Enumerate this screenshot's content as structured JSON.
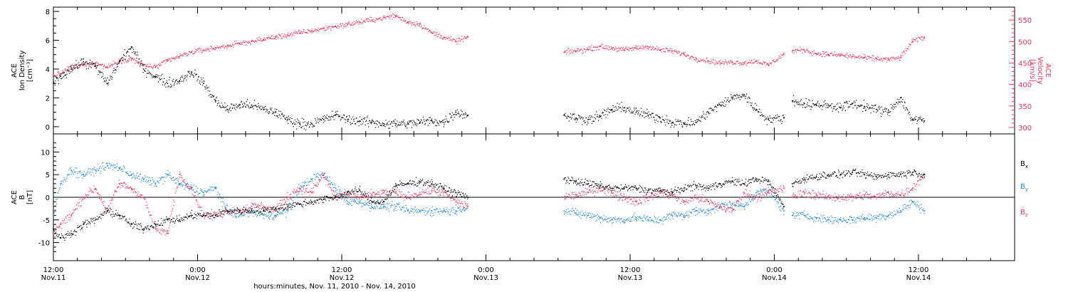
{
  "colors": {
    "black": "#000000",
    "blue": "#1f87e0",
    "pink": "#e8365e"
  },
  "xaxis": {
    "title": "hours:minutes, Nov. 11, 2010 - Nov. 14, 2010",
    "range_hours": [
      0,
      80
    ],
    "major_ticks": [
      {
        "hour": 0,
        "time": "12:00",
        "date": "Nov.11"
      },
      {
        "hour": 12,
        "time": "0:00",
        "date": "Nov.12"
      },
      {
        "hour": 24,
        "time": "12:00",
        "date": "Nov.12"
      },
      {
        "hour": 36,
        "time": "0:00",
        "date": "Nov.13"
      },
      {
        "hour": 48,
        "time": "12:00",
        "date": "Nov.13"
      },
      {
        "hour": 60,
        "time": "0:00",
        "date": "Nov.14"
      },
      {
        "hour": 72,
        "time": "12:00",
        "date": "Nov.14"
      }
    ]
  },
  "chart_data": [
    {
      "type": "scatter",
      "panel": "top",
      "ylabel_left": [
        "ACE",
        "Ion Density",
        "[cm⁻³]"
      ],
      "ylabel_right": [
        "ACE",
        "Velocity",
        "[km/s]"
      ],
      "ylim_left": [
        -0.5,
        8.3
      ],
      "yticks_left": [
        0,
        2,
        4,
        6,
        8
      ],
      "ylim_right": [
        285,
        580
      ],
      "yticks_right": [
        300,
        350,
        400,
        450,
        500,
        550
      ],
      "data_gaps_hours": [
        [
          34.5,
          42.5
        ],
        [
          60.8,
          61.5
        ]
      ],
      "series": [
        {
          "key": "density",
          "color": "#000000",
          "axis": "left",
          "x": [
            0,
            0.6,
            1.5,
            2.5,
            3.5,
            4.5,
            5.5,
            6.5,
            7.5,
            8.5,
            9.5,
            10.5,
            11.5,
            12.5,
            13.5,
            14.5,
            15.5,
            16.5,
            17.5,
            18.5,
            19.5,
            20.5,
            21.5,
            22.5,
            23.5,
            24.5,
            25.5,
            26.5,
            27.5,
            28.5,
            29.5,
            30.5,
            31.5,
            32.5,
            33.5,
            34.5,
            42.5,
            43.5,
            44.5,
            45.5,
            46.5,
            47.5,
            48.5,
            49.5,
            50.5,
            51.5,
            52.5,
            53.5,
            54.5,
            55.5,
            56.5,
            57.5,
            58.5,
            59.5,
            60.8,
            61.5,
            62.5,
            63.5,
            64.5,
            65.5,
            66.5,
            67.5,
            68.5,
            69.5,
            70.5,
            71.5,
            72.5
          ],
          "y": [
            3.0,
            3.5,
            4.0,
            4.5,
            4.2,
            3.0,
            4.5,
            5.5,
            4.0,
            3.5,
            3.0,
            3.2,
            3.8,
            3.0,
            1.8,
            1.2,
            1.5,
            1.5,
            1.2,
            1.0,
            0.5,
            0.2,
            0.2,
            0.5,
            0.8,
            0.5,
            0.4,
            0.3,
            0.2,
            0.2,
            0.2,
            0.3,
            0.4,
            0.3,
            1.0,
            0.8,
            0.8,
            0.6,
            0.5,
            0.7,
            1.2,
            1.3,
            1.0,
            0.8,
            0.6,
            0.3,
            0.2,
            0.3,
            1.0,
            1.5,
            2.0,
            2.2,
            1.2,
            0.5,
            0.6,
            1.8,
            1.6,
            1.5,
            1.5,
            1.3,
            1.6,
            1.4,
            1.2,
            1.0,
            2.0,
            0.5,
            0.4
          ]
        },
        {
          "key": "velocity",
          "color": "#e8365e",
          "axis": "right",
          "x": [
            0,
            0.6,
            1.5,
            2.5,
            3.5,
            4.5,
            5.5,
            6.5,
            7.5,
            8.5,
            9.5,
            10.5,
            11.5,
            12.5,
            13.5,
            14.5,
            15.5,
            16.5,
            17.5,
            18.5,
            19.5,
            20.5,
            21.5,
            22.5,
            23.5,
            24.5,
            25.5,
            26.5,
            27.5,
            28.5,
            29.5,
            30.5,
            31.5,
            32.5,
            33.5,
            34.5,
            42.5,
            43.5,
            44.5,
            45.5,
            46.5,
            47.5,
            48.5,
            49.5,
            50.5,
            51.5,
            52.5,
            53.5,
            54.5,
            55.5,
            56.5,
            57.5,
            58.5,
            59.5,
            60.8,
            61.5,
            62.5,
            63.5,
            64.5,
            65.5,
            66.5,
            67.5,
            68.5,
            69.5,
            70.5,
            71.5,
            72.5
          ],
          "y": [
            420,
            425,
            440,
            445,
            450,
            440,
            455,
            460,
            445,
            440,
            455,
            465,
            475,
            480,
            485,
            490,
            495,
            500,
            505,
            510,
            515,
            520,
            525,
            530,
            535,
            540,
            545,
            550,
            555,
            560,
            545,
            540,
            520,
            510,
            500,
            510,
            475,
            478,
            482,
            488,
            485,
            480,
            485,
            488,
            480,
            478,
            470,
            460,
            455,
            450,
            452,
            450,
            455,
            445,
            470,
            478,
            480,
            472,
            470,
            468,
            465,
            462,
            460,
            458,
            462,
            500,
            510
          ]
        }
      ]
    },
    {
      "type": "scatter",
      "panel": "bottom",
      "ylabel_left": [
        "ACE",
        "B",
        "[nT]"
      ],
      "ylim": [
        -14,
        14
      ],
      "yticks": [
        -10,
        -5,
        0,
        5,
        10
      ],
      "zero_line": true,
      "legend_placement": "right",
      "legend": [
        "B",
        "B",
        "B"
      ],
      "legend_subscripts": [
        "x",
        "y",
        "z"
      ],
      "data_gaps_hours": [
        [
          34.5,
          42.5
        ],
        [
          60.8,
          61.5
        ]
      ],
      "series": [
        {
          "key": "bx",
          "color": "#000000",
          "x": [
            0,
            0.6,
            1.5,
            2.5,
            3.5,
            4.5,
            5.5,
            6.5,
            7.5,
            8.5,
            9.5,
            10.5,
            11.5,
            12.5,
            13.5,
            14.5,
            15.5,
            16.5,
            17.5,
            18.5,
            19.5,
            20.5,
            21.5,
            22.5,
            23.5,
            24.5,
            25.5,
            26.5,
            27.5,
            28.5,
            29.5,
            30.5,
            31.5,
            32.5,
            33.5,
            34.5,
            42.5,
            43.5,
            44.5,
            45.5,
            46.5,
            47.5,
            48.5,
            49.5,
            50.5,
            51.5,
            52.5,
            53.5,
            54.5,
            55.5,
            56.5,
            57.5,
            58.5,
            59.5,
            60.8,
            61.5,
            62.5,
            63.5,
            64.5,
            65.5,
            66.5,
            67.5,
            68.5,
            69.5,
            70.5,
            71.5,
            72.5
          ],
          "y": [
            -7,
            -9,
            -8,
            -6,
            -5,
            -3,
            -4,
            -6,
            -7,
            -6,
            -5,
            -5,
            -4,
            -4,
            -4,
            -3,
            -3,
            -3,
            -3,
            -2.5,
            -2,
            -1.5,
            -1,
            -0.5,
            0,
            1,
            1.5,
            -1,
            -1,
            2.5,
            3,
            3.5,
            3,
            2,
            1,
            0,
            4,
            3.5,
            3,
            2.5,
            2,
            2,
            2,
            1.5,
            1.5,
            1,
            2,
            2.5,
            2,
            3,
            3.5,
            3,
            4,
            3.5,
            -2,
            3,
            4,
            4.5,
            5,
            5,
            5.5,
            5,
            4.5,
            5,
            5,
            5.5,
            5
          ]
        },
        {
          "key": "by",
          "color": "#1f87e0",
          "x": [
            0,
            0.6,
            1.5,
            2.5,
            3.5,
            4.5,
            5.5,
            6.5,
            7.5,
            8.5,
            9.5,
            10.5,
            11.5,
            12.5,
            13.5,
            14.5,
            15.5,
            16.5,
            17.5,
            18.5,
            19.5,
            20.5,
            21.5,
            22.5,
            23.5,
            24.5,
            25.5,
            26.5,
            27.5,
            28.5,
            29.5,
            30.5,
            31.5,
            32.5,
            33.5,
            34.5,
            42.5,
            43.5,
            44.5,
            45.5,
            46.5,
            47.5,
            48.5,
            49.5,
            50.5,
            51.5,
            52.5,
            53.5,
            54.5,
            55.5,
            56.5,
            57.5,
            58.5,
            59.5,
            60.8,
            61.5,
            62.5,
            63.5,
            64.5,
            65.5,
            66.5,
            67.5,
            68.5,
            69.5,
            70.5,
            71.5,
            72.5
          ],
          "y": [
            -4,
            3,
            6,
            5,
            6,
            7,
            6.5,
            5,
            4,
            3,
            5,
            3,
            2,
            1,
            2,
            -3,
            -4,
            -3,
            -4,
            -4,
            -3,
            2,
            4,
            5,
            2,
            -1,
            -1,
            -2,
            -2,
            -2,
            -3,
            -3,
            -3,
            -3,
            -3,
            -2,
            -3,
            -3.5,
            -4,
            -4.5,
            -5,
            -5,
            -4.5,
            -5,
            -5,
            -4,
            -4,
            -3,
            -3,
            -2,
            -1.5,
            -2,
            1,
            1.5,
            -3,
            -4,
            -4,
            -4.5,
            -5,
            -5,
            -5,
            -4.5,
            -4.5,
            -4,
            -3,
            -1,
            -3
          ]
        },
        {
          "key": "bz",
          "color": "#e8365e",
          "x": [
            0,
            0.6,
            1.5,
            2.5,
            3.5,
            4.5,
            5.5,
            6.5,
            7.5,
            8.5,
            9.5,
            10.5,
            11.5,
            12.5,
            13.5,
            14.5,
            15.5,
            16.5,
            17.5,
            18.5,
            19.5,
            20.5,
            21.5,
            22.5,
            23.5,
            24.5,
            25.5,
            26.5,
            27.5,
            28.5,
            29.5,
            30.5,
            31.5,
            32.5,
            33.5,
            34.5,
            42.5,
            43.5,
            44.5,
            45.5,
            46.5,
            47.5,
            48.5,
            49.5,
            50.5,
            51.5,
            52.5,
            53.5,
            54.5,
            55.5,
            56.5,
            57.5,
            58.5,
            59.5,
            60.8,
            61.5,
            62.5,
            63.5,
            64.5,
            65.5,
            66.5,
            67.5,
            68.5,
            69.5,
            70.5,
            71.5,
            72.5
          ],
          "y": [
            -8,
            -6,
            -4,
            0,
            2,
            -3,
            3,
            2,
            0,
            -7,
            -8,
            5,
            2,
            -4,
            -4,
            -3,
            -3,
            -2,
            -2,
            -3,
            0,
            2,
            1,
            5,
            0,
            0.5,
            0,
            0.5,
            1,
            1,
            0,
            1,
            1.5,
            1,
            -1,
            -2,
            0,
            0.5,
            1,
            2,
            1,
            0,
            -1,
            0,
            1,
            0.5,
            -1,
            0,
            -1,
            -2,
            -3,
            1,
            0,
            1,
            2,
            0,
            1,
            0.5,
            0,
            0,
            0,
            0.5,
            0,
            1,
            0.5,
            2,
            5
          ]
        }
      ]
    }
  ]
}
